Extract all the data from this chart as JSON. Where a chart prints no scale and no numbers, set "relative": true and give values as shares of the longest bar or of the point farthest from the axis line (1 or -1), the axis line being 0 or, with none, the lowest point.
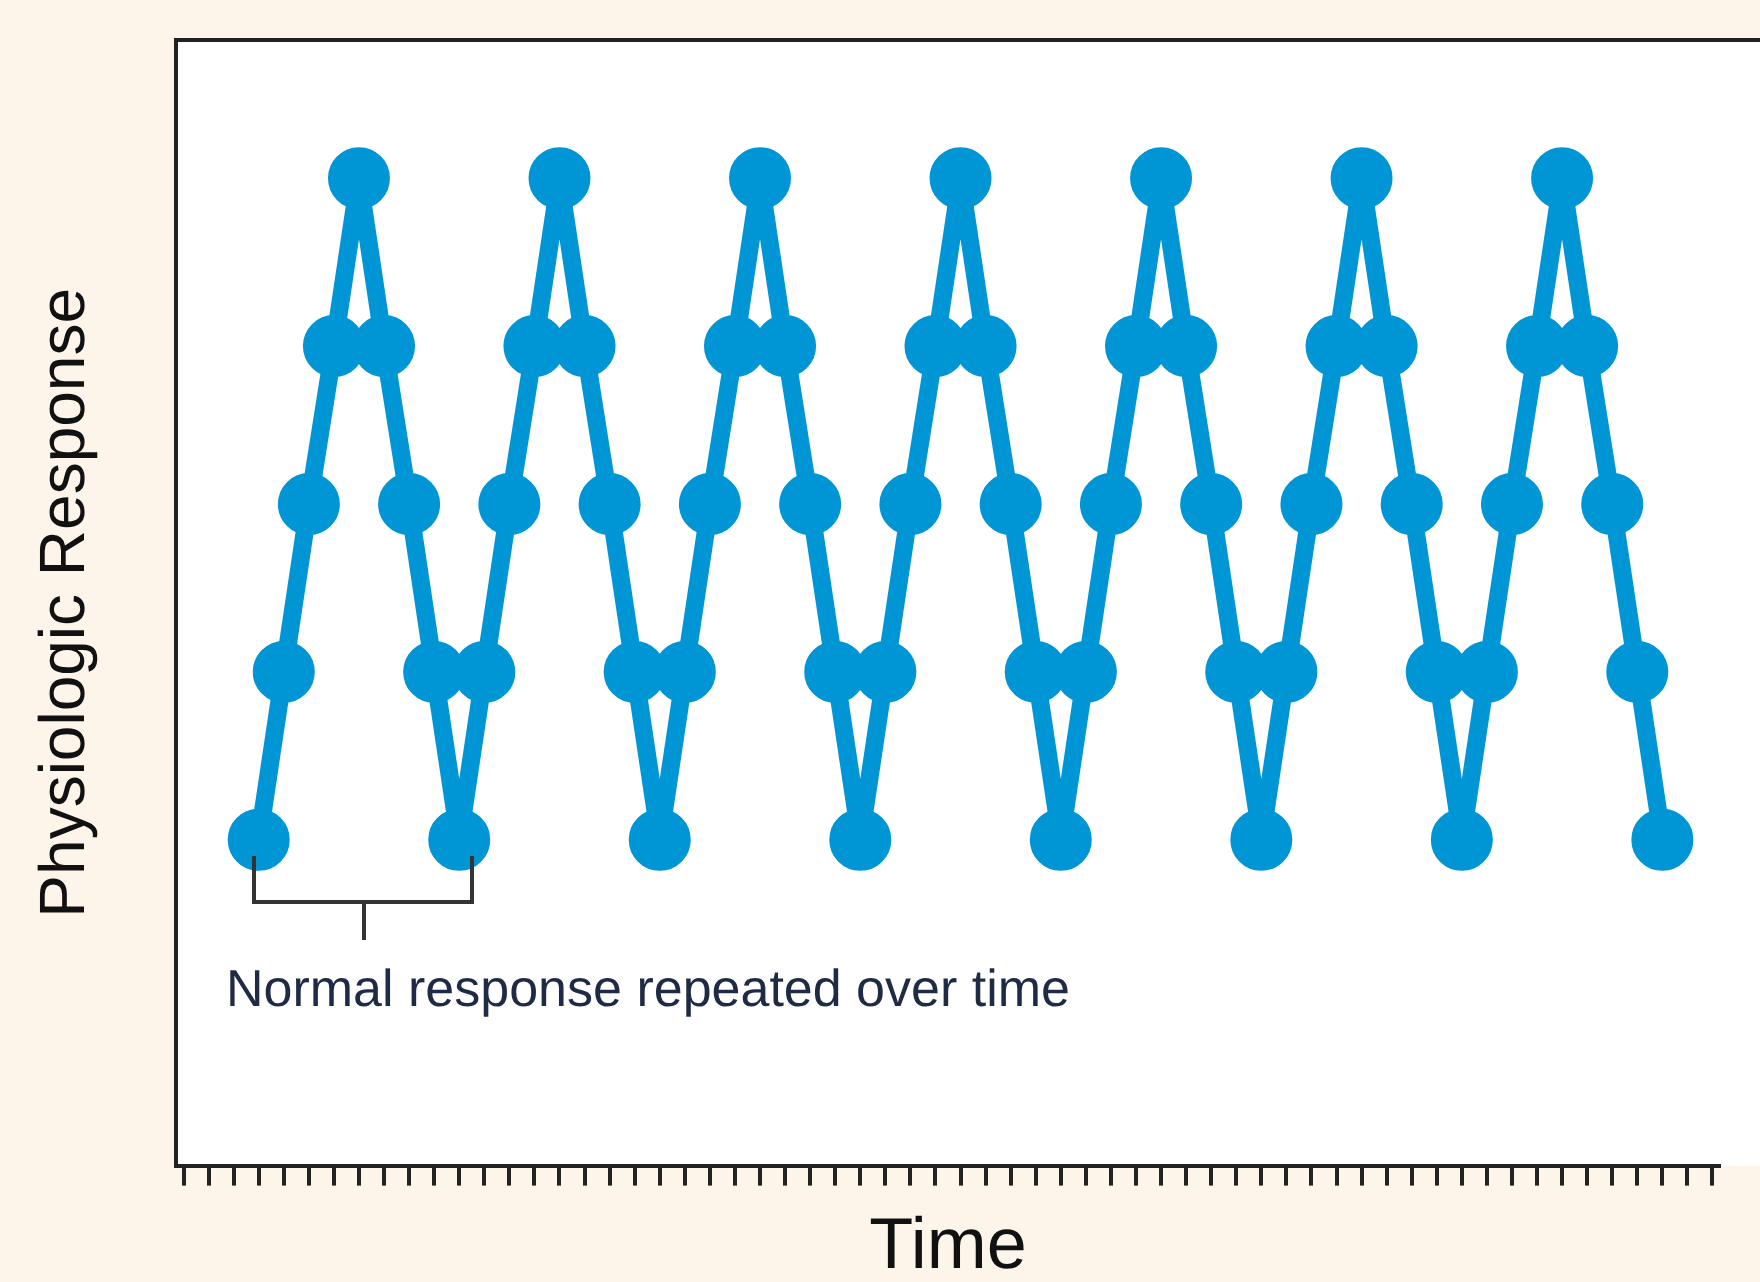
{
  "chart_data": {
    "type": "line",
    "relative": true,
    "xlabel": "Time",
    "ylabel": "Physiologic Response",
    "marker": "circle",
    "line_style": "solid",
    "legend": false,
    "grid": false,
    "categories": [
      null,
      null,
      null,
      null,
      null,
      null,
      null,
      null,
      null,
      null,
      null,
      null,
      null,
      null,
      null,
      null,
      null,
      null,
      null,
      null,
      null,
      null,
      null,
      null,
      null,
      null,
      null,
      null,
      null,
      null,
      null,
      null,
      null,
      null,
      null,
      null,
      null,
      null,
      null,
      null,
      null,
      null,
      null,
      null,
      null,
      null,
      null,
      null,
      null,
      null,
      null,
      null,
      null,
      null,
      null,
      null,
      null
    ],
    "series": [
      {
        "color": "#0096d6",
        "values": [
          0.33,
          0.5,
          0.67,
          0.83,
          1,
          0.83,
          0.67,
          0.5,
          0.33,
          0.5,
          0.67,
          0.83,
          1,
          0.83,
          0.67,
          0.5,
          0.33,
          0.5,
          0.67,
          0.83,
          1,
          0.83,
          0.67,
          0.5,
          0.33,
          0.5,
          0.67,
          0.83,
          1,
          0.83,
          0.67,
          0.5,
          0.33,
          0.5,
          0.67,
          0.83,
          1,
          0.83,
          0.67,
          0.5,
          0.33,
          0.5,
          0.67,
          0.83,
          1,
          0.83,
          0.67,
          0.5,
          0.33,
          0.5,
          0.67,
          0.83,
          1,
          0.83,
          0.67,
          0.5,
          0.33
        ]
      }
    ],
    "annotations": [
      "Normal response repeated over time"
    ]
  }
}
